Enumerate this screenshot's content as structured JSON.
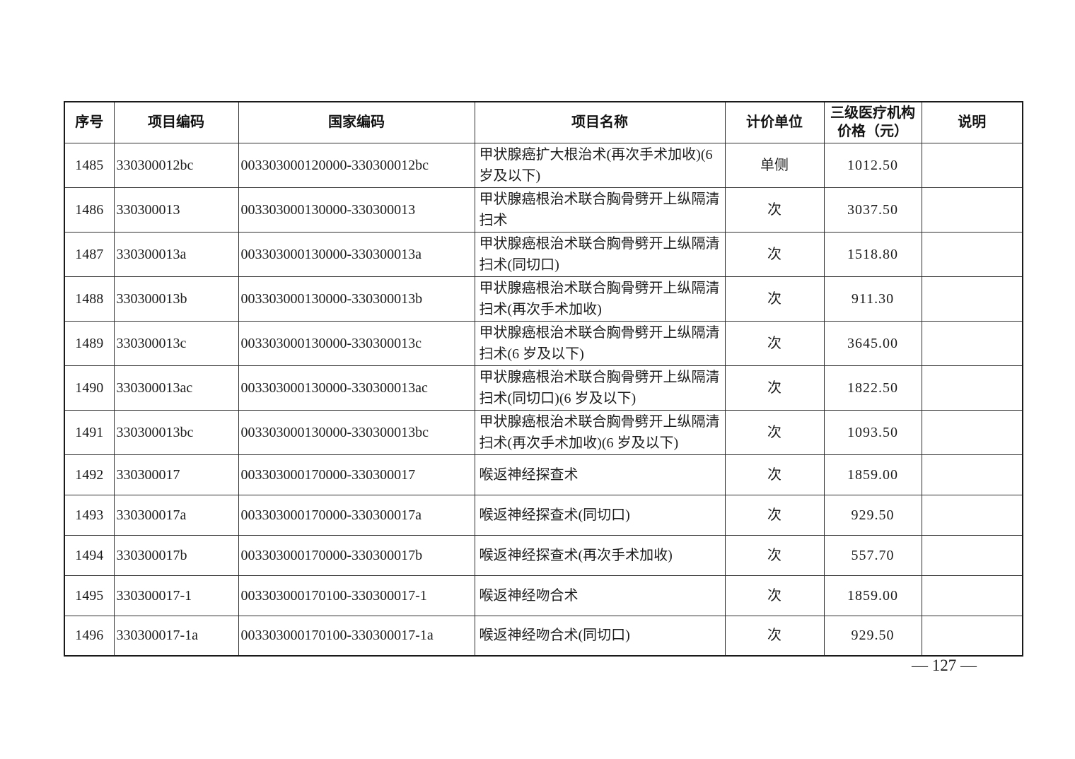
{
  "page": {
    "page_number": "— 127 —"
  },
  "table": {
    "headers": {
      "seq": "序号",
      "item_code": "项目编码",
      "national_code": "国家编码",
      "item_name": "项目名称",
      "unit": "计价单位",
      "tier3_price": "三级医疗机构价格（元）",
      "note": "说明"
    },
    "rows": [
      {
        "seq": "1485",
        "code": "330300012bc",
        "national_code": "003303000120000-330300012bc",
        "name": "甲状腺癌扩大根治术(再次手术加收)(6 岁及以下)",
        "unit": "单侧",
        "price": "1012.50",
        "note": ""
      },
      {
        "seq": "1486",
        "code": "330300013",
        "national_code": "003303000130000-330300013",
        "name": "甲状腺癌根治术联合胸骨劈开上纵隔清扫术",
        "unit": "次",
        "price": "3037.50",
        "note": ""
      },
      {
        "seq": "1487",
        "code": "330300013a",
        "national_code": "003303000130000-330300013a",
        "name": "甲状腺癌根治术联合胸骨劈开上纵隔清扫术(同切口)",
        "unit": "次",
        "price": "1518.80",
        "note": ""
      },
      {
        "seq": "1488",
        "code": "330300013b",
        "national_code": "003303000130000-330300013b",
        "name": "甲状腺癌根治术联合胸骨劈开上纵隔清扫术(再次手术加收)",
        "unit": "次",
        "price": "911.30",
        "note": ""
      },
      {
        "seq": "1489",
        "code": "330300013c",
        "national_code": "003303000130000-330300013c",
        "name": "甲状腺癌根治术联合胸骨劈开上纵隔清扫术(6 岁及以下)",
        "unit": "次",
        "price": "3645.00",
        "note": ""
      },
      {
        "seq": "1490",
        "code": "330300013ac",
        "national_code": "003303000130000-330300013ac",
        "name": "甲状腺癌根治术联合胸骨劈开上纵隔清扫术(同切口)(6 岁及以下)",
        "unit": "次",
        "price": "1822.50",
        "note": ""
      },
      {
        "seq": "1491",
        "code": "330300013bc",
        "national_code": "003303000130000-330300013bc",
        "name": "甲状腺癌根治术联合胸骨劈开上纵隔清扫术(再次手术加收)(6 岁及以下)",
        "unit": "次",
        "price": "1093.50",
        "note": ""
      },
      {
        "seq": "1492",
        "code": "330300017",
        "national_code": "003303000170000-330300017",
        "name": "喉返神经探查术",
        "unit": "次",
        "price": "1859.00",
        "note": ""
      },
      {
        "seq": "1493",
        "code": "330300017a",
        "national_code": "003303000170000-330300017a",
        "name": "喉返神经探查术(同切口)",
        "unit": "次",
        "price": "929.50",
        "note": ""
      },
      {
        "seq": "1494",
        "code": "330300017b",
        "national_code": "003303000170000-330300017b",
        "name": "喉返神经探查术(再次手术加收)",
        "unit": "次",
        "price": "557.70",
        "note": ""
      },
      {
        "seq": "1495",
        "code": "330300017-1",
        "national_code": "003303000170100-330300017-1",
        "name": "喉返神经吻合术",
        "unit": "次",
        "price": "1859.00",
        "note": ""
      },
      {
        "seq": "1496",
        "code": "330300017-1a",
        "national_code": "003303000170100-330300017-1a",
        "name": "喉返神经吻合术(同切口)",
        "unit": "次",
        "price": "929.50",
        "note": ""
      }
    ]
  }
}
